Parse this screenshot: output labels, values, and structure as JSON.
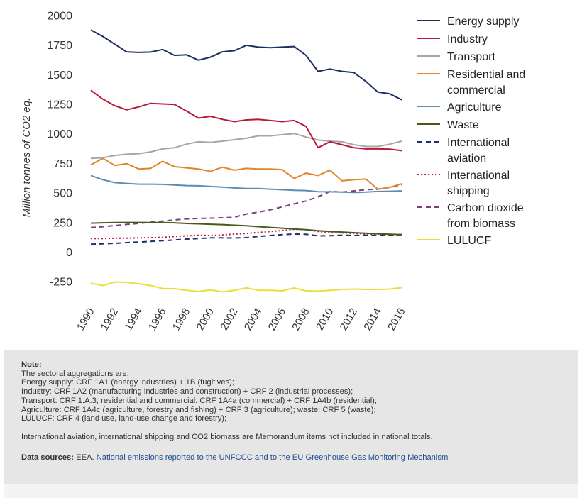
{
  "chart_data": {
    "type": "line",
    "ylabel": "Million tonnes of CO2 eq.",
    "xlabel": "",
    "ylim": [
      -350,
      2000
    ],
    "yticks": [
      "2000",
      "1750",
      "1500",
      "1250",
      "1000",
      "750",
      "500",
      "250",
      "0",
      "-250"
    ],
    "ytick_values": [
      2000,
      1750,
      1500,
      1250,
      1000,
      750,
      500,
      250,
      0,
      -250
    ],
    "xtick_labels": [
      "1990",
      "1992",
      "1994",
      "1996",
      "1998",
      "2000",
      "2002",
      "2004",
      "2006",
      "2008",
      "2010",
      "2012",
      "2014",
      "2016"
    ],
    "x": [
      1990,
      1991,
      1992,
      1993,
      1994,
      1995,
      1996,
      1997,
      1998,
      1999,
      2000,
      2001,
      2002,
      2003,
      2004,
      2005,
      2006,
      2007,
      2008,
      2009,
      2010,
      2011,
      2012,
      2013,
      2014,
      2015,
      2016
    ],
    "grid": false,
    "legend_position": "right",
    "series": [
      {
        "name": "Energy supply",
        "legend_lines": [
          "Energy supply"
        ],
        "color": "#1c2f5e",
        "dash": "solid",
        "values": [
          1875,
          1820,
          1755,
          1690,
          1685,
          1688,
          1710,
          1660,
          1665,
          1620,
          1645,
          1690,
          1700,
          1745,
          1730,
          1725,
          1730,
          1735,
          1660,
          1525,
          1545,
          1525,
          1515,
          1440,
          1350,
          1335,
          1285
        ]
      },
      {
        "name": "Industry",
        "legend_lines": [
          "Industry"
        ],
        "color": "#b8193a",
        "dash": "solid",
        "values": [
          1365,
          1290,
          1235,
          1200,
          1225,
          1255,
          1250,
          1245,
          1190,
          1130,
          1145,
          1120,
          1100,
          1115,
          1120,
          1110,
          1100,
          1110,
          1060,
          880,
          930,
          905,
          880,
          870,
          870,
          868,
          855
        ]
      },
      {
        "name": "Transport",
        "legend_lines": [
          "Transport"
        ],
        "color": "#a6a6a6",
        "dash": "solid",
        "values": [
          790,
          795,
          815,
          825,
          830,
          845,
          870,
          880,
          910,
          930,
          925,
          935,
          948,
          960,
          980,
          980,
          990,
          1000,
          970,
          945,
          935,
          930,
          905,
          890,
          890,
          910,
          935
        ]
      },
      {
        "name": "Residential and commercial",
        "legend_lines": [
          "Residential and",
          "commercial"
        ],
        "color": "#e0852a",
        "dash": "solid",
        "values": [
          735,
          790,
          730,
          745,
          700,
          705,
          765,
          720,
          710,
          700,
          680,
          715,
          690,
          705,
          700,
          700,
          695,
          620,
          665,
          645,
          690,
          600,
          610,
          615,
          530,
          545,
          575
        ]
      },
      {
        "name": "Agriculture",
        "legend_lines": [
          "Agriculture"
        ],
        "color": "#5b8db3",
        "dash": "solid",
        "values": [
          645,
          610,
          585,
          578,
          572,
          572,
          570,
          565,
          560,
          558,
          552,
          547,
          540,
          535,
          535,
          530,
          525,
          520,
          518,
          508,
          507,
          505,
          502,
          505,
          510,
          512,
          515
        ]
      },
      {
        "name": "Waste",
        "legend_lines": [
          "Waste"
        ],
        "color": "#4a5a1c",
        "dash": "solid",
        "values": [
          242,
          245,
          247,
          248,
          248,
          247,
          247,
          245,
          240,
          237,
          233,
          230,
          225,
          220,
          213,
          206,
          200,
          193,
          187,
          178,
          172,
          167,
          162,
          157,
          152,
          148,
          145
        ]
      },
      {
        "name": "International aviation",
        "legend_lines": [
          "International",
          "aviation"
        ],
        "color": "#1a2f6b",
        "dash": "7,5",
        "values": [
          65,
          68,
          72,
          78,
          83,
          88,
          95,
          100,
          108,
          112,
          118,
          118,
          117,
          120,
          130,
          138,
          145,
          150,
          148,
          135,
          136,
          140,
          138,
          140,
          138,
          142,
          145
        ]
      },
      {
        "name": "International shipping",
        "legend_lines": [
          "International",
          "shipping"
        ],
        "color": "#c2174b",
        "dash": "2,3",
        "values": [
          112,
          112,
          115,
          116,
          118,
          120,
          122,
          130,
          135,
          140,
          138,
          142,
          150,
          155,
          163,
          172,
          180,
          190,
          188,
          172,
          165,
          160,
          155,
          150,
          150,
          148,
          145
        ]
      },
      {
        "name": "Carbon dioxide from biomass",
        "legend_lines": [
          "Carbon dioxide",
          "from biomass"
        ],
        "color": "#7b3c81",
        "dash": "7,5",
        "values": [
          205,
          212,
          222,
          232,
          240,
          250,
          260,
          270,
          278,
          282,
          285,
          288,
          292,
          320,
          335,
          355,
          380,
          405,
          430,
          465,
          510,
          505,
          515,
          525,
          530,
          545,
          565
        ]
      },
      {
        "name": "LULUCF",
        "legend_lines": [
          "LULUCF"
        ],
        "color": "#ecde3a",
        "dash": "solid",
        "values": [
          -265,
          -285,
          -255,
          -258,
          -270,
          -285,
          -310,
          -312,
          -325,
          -335,
          -322,
          -338,
          -325,
          -305,
          -325,
          -325,
          -330,
          -305,
          -330,
          -332,
          -325,
          -318,
          -315,
          -318,
          -318,
          -315,
          -303
        ]
      }
    ]
  },
  "note": {
    "title": "Note:",
    "lines": [
      "The sectoral aggregations are:",
      "Energy supply: CRF 1A1 (energy industries) + 1B (fugitives);",
      "Industry: CRF 1A2 (manufacturing industries and construction) + CRF 2 (industrial processes);",
      "Transport: CRF 1.A.3; residential and commercial: CRF 1A4a (commercial) + CRF 1A4b (residential);",
      "Agriculture: CRF 1A4c (agriculture, forestry and fishing) + CRF 3 (agriculture); waste: CRF 5 (waste);",
      "LULUCF: CRF 4 (land use, land-use change and forestry);"
    ],
    "memo": "International aviation, international shipping and CO2 biomass are Memorandum items not included in national totals."
  },
  "sources": {
    "label": "Data sources:",
    "provider": "EEA.",
    "link_text": "National emissions reported to the UNFCCC and to the EU Greenhouse Gas Monitoring Mechanism"
  }
}
